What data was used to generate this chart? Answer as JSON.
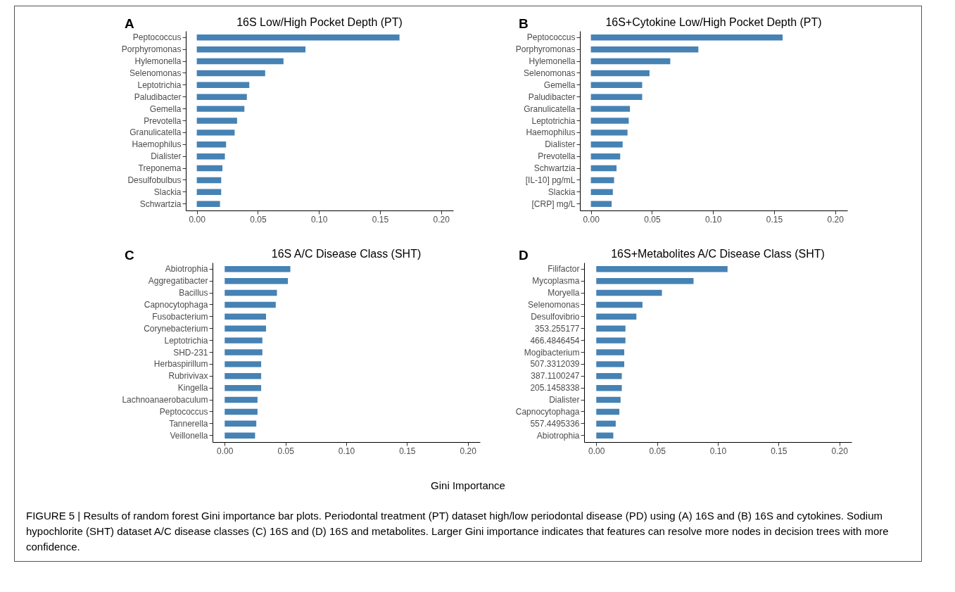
{
  "chart_data": [
    {
      "type": "bar",
      "orientation": "horizontal",
      "title": "16S Low/High Pocket Depth (PT)",
      "annotations": [
        "A"
      ],
      "categories": [
        "Peptococcus",
        "Porphyromonas",
        "Hylemonella",
        "Selenomonas",
        "Leptotrichia",
        "Paludibacter",
        "Gemella",
        "Prevotella",
        "Granulicatella",
        "Haemophilus",
        "Dialister",
        "Treponema",
        "Desulfobulbus",
        "Slackia",
        "Schwartzia"
      ],
      "values": [
        0.166,
        0.089,
        0.071,
        0.056,
        0.043,
        0.041,
        0.039,
        0.033,
        0.031,
        0.024,
        0.023,
        0.021,
        0.02,
        0.02,
        0.019
      ],
      "color": "#4682b4",
      "xlim": [
        -0.009,
        0.21
      ],
      "xticks": [
        {
          "value": 0,
          "label": "0.00"
        },
        {
          "value": 0.05,
          "label": "0.05"
        },
        {
          "value": 0.1,
          "label": "0.10"
        },
        {
          "value": 0.15,
          "label": "0.15"
        },
        {
          "value": 0.2,
          "label": "0.20"
        }
      ],
      "grid": false
    },
    {
      "type": "bar",
      "orientation": "horizontal",
      "title": "16S+Cytokine Low/High Pocket Depth (PT)",
      "annotations": [
        "B"
      ],
      "categories": [
        "Peptococcus",
        "Porphyromonas",
        "Hylemonella",
        "Selenomonas",
        "Gemella",
        "Paludibacter",
        "Granulicatella",
        "Leptotrichia",
        "Haemophilus",
        "Dialister",
        "Prevotella",
        "Schwartzia",
        "[IL-10] pg/mL",
        "Slackia",
        "[CRP] mg/L"
      ],
      "values": [
        0.157,
        0.088,
        0.065,
        0.048,
        0.042,
        0.042,
        0.032,
        0.031,
        0.03,
        0.026,
        0.024,
        0.021,
        0.019,
        0.018,
        0.017
      ],
      "color": "#4682b4",
      "xlim": [
        -0.009,
        0.21
      ],
      "xticks": [
        {
          "value": 0,
          "label": "0.00"
        },
        {
          "value": 0.05,
          "label": "0.05"
        },
        {
          "value": 0.1,
          "label": "0.10"
        },
        {
          "value": 0.15,
          "label": "0.15"
        },
        {
          "value": 0.2,
          "label": "0.20"
        }
      ],
      "grid": false
    },
    {
      "type": "bar",
      "orientation": "horizontal",
      "title": "16S A/C Disease Class (SHT)",
      "annotations": [
        "C"
      ],
      "categories": [
        "Abiotrophia",
        "Aggregatibacter",
        "Bacillus",
        "Capnocytophaga",
        "Fusobacterium",
        "Corynebacterium",
        "Leptotrichia",
        "SHD-231",
        "Herbaspirillum",
        "Rubrivivax",
        "Kingella",
        "Lachnoanaerobaculum",
        "Peptococcus",
        "Tannerella",
        "Veillonella"
      ],
      "values": [
        0.054,
        0.052,
        0.043,
        0.042,
        0.034,
        0.034,
        0.031,
        0.031,
        0.03,
        0.03,
        0.03,
        0.027,
        0.027,
        0.026,
        0.025
      ],
      "color": "#4682b4",
      "xlim": [
        -0.01,
        0.21
      ],
      "xticks": [
        {
          "value": 0,
          "label": "0.00"
        },
        {
          "value": 0.05,
          "label": "0.05"
        },
        {
          "value": 0.1,
          "label": "0.10"
        },
        {
          "value": 0.15,
          "label": "0.15"
        },
        {
          "value": 0.2,
          "label": "0.20"
        }
      ],
      "grid": false
    },
    {
      "type": "bar",
      "orientation": "horizontal",
      "title": "16S+Metabolites A/C Disease Class (SHT)",
      "xlabel": "Gini Importance",
      "annotations": [
        "D",
        "FIGURE 5 | Results of random forest Gini importance bar plots. Periodontal treatment (PT) dataset high/low periodontal disease (PD) using (A) 16S and (B) 16S and cytokines. Sodium hypochlorite (SHT) dataset A/C disease classes (C) 16S and (D) 16S and metabolites. Larger Gini importance indicates that features can resolve more nodes in decision trees with more confidence."
      ],
      "categories": [
        "Filifactor",
        "Mycoplasma",
        "Moryella",
        "Selenomonas",
        "Desulfovibrio",
        "353.255177",
        "466.4846454",
        "Mogibacterium",
        "507.3312039",
        "387.1100247",
        "205.1458338",
        "Dialister",
        "Capnocytophaga",
        "557.4495336",
        "Abiotrophia"
      ],
      "values": [
        0.108,
        0.08,
        0.054,
        0.038,
        0.033,
        0.024,
        0.024,
        0.023,
        0.023,
        0.021,
        0.021,
        0.02,
        0.019,
        0.016,
        0.014
      ],
      "color": "#4682b4",
      "xlim": [
        -0.01,
        0.21
      ],
      "xticks": [
        {
          "value": 0,
          "label": "0.00"
        },
        {
          "value": 0.05,
          "label": "0.05"
        },
        {
          "value": 0.1,
          "label": "0.10"
        },
        {
          "value": 0.15,
          "label": "0.15"
        },
        {
          "value": 0.2,
          "label": "0.20"
        }
      ],
      "grid": false
    }
  ]
}
